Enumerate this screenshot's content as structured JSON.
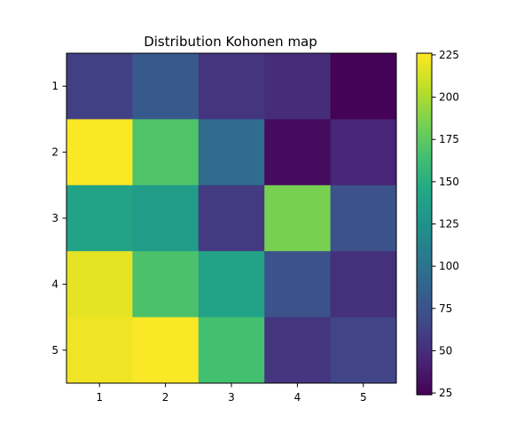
{
  "chart_data": {
    "type": "heatmap",
    "title": "Distribution Kohonen map",
    "xlabel": "",
    "ylabel": "",
    "x_categories": [
      "1",
      "2",
      "3",
      "4",
      "5"
    ],
    "y_categories": [
      "1",
      "2",
      "3",
      "4",
      "5"
    ],
    "values": [
      [
        62,
        80,
        55,
        50,
        25
      ],
      [
        225,
        170,
        95,
        30,
        45
      ],
      [
        140,
        135,
        58,
        185,
        75
      ],
      [
        218,
        168,
        140,
        75,
        52
      ],
      [
        222,
        225,
        165,
        55,
        65
      ]
    ],
    "colorbar": {
      "range": [
        24,
        226
      ],
      "ticks": [
        "25",
        "50",
        "75",
        "100",
        "125",
        "150",
        "175",
        "200",
        "225"
      ],
      "colormap": "viridis"
    },
    "grid": false,
    "legend": "none"
  }
}
